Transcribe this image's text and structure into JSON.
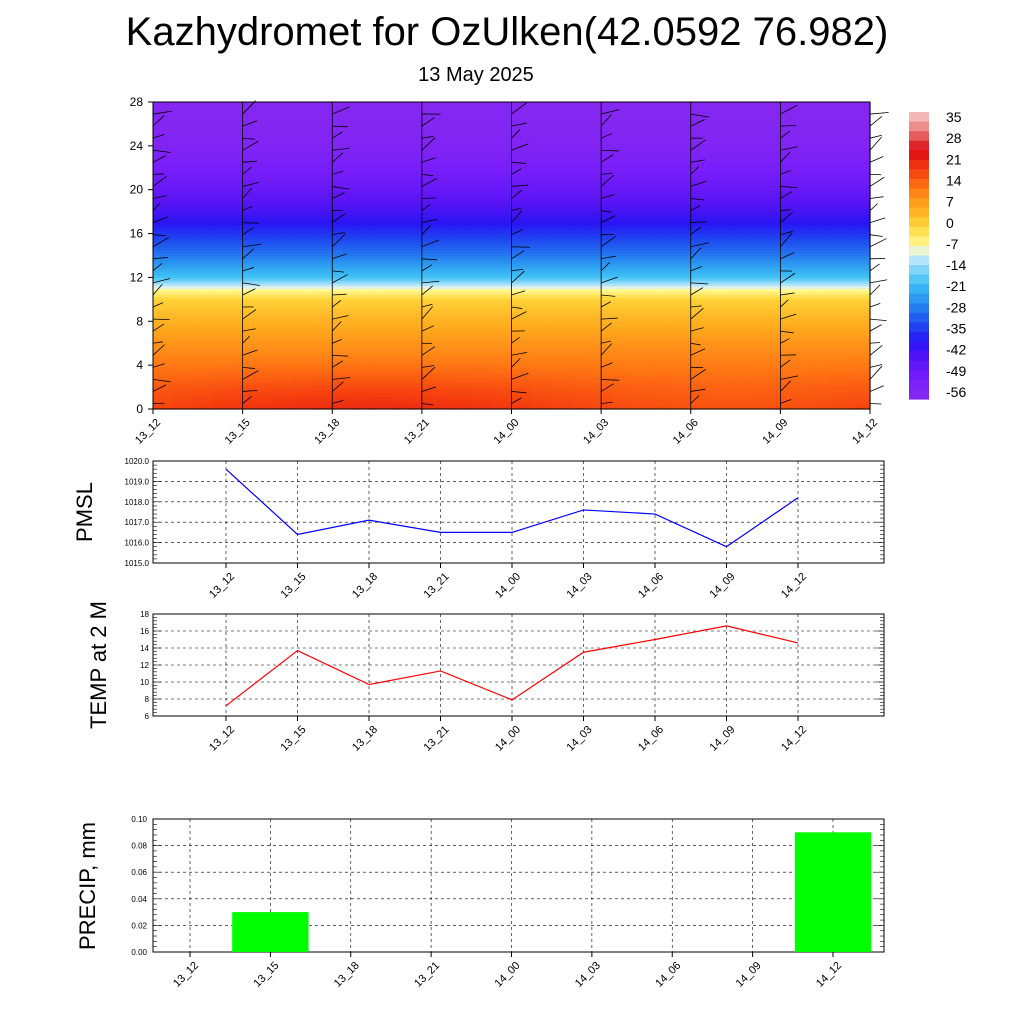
{
  "title": "Kazhydromet for OzUlken(42.0592 76.982)",
  "subtitle": "13 May 2025",
  "chart_data": [
    {
      "type": "heatmap",
      "xlabel": "",
      "ylabel": "",
      "x_ticks": [
        "13_12",
        "13_15",
        "13_18",
        "13_21",
        "14_00",
        "14_03",
        "14_06",
        "14_09",
        "14_12"
      ],
      "y_ticks": [
        0,
        4,
        8,
        12,
        16,
        20,
        24,
        28
      ],
      "ylim": [
        0,
        28
      ],
      "colorbar_labels": [
        "35",
        "28",
        "21",
        "14",
        "7",
        "0",
        "-7",
        "-14",
        "-21",
        "-28",
        "-35",
        "-42",
        "-49",
        "-56"
      ],
      "temperature_profile": {
        "levels": [
          0,
          2,
          4,
          6,
          8,
          10,
          11,
          12,
          14,
          16,
          18,
          20,
          22,
          24,
          26,
          28
        ],
        "values": [
          21,
          18,
          14,
          10,
          6,
          1,
          -8,
          -20,
          -30,
          -38,
          -46,
          -52,
          -56,
          -60,
          -62,
          -62
        ]
      },
      "wind_barbs": "shown"
    },
    {
      "type": "line",
      "ylabel": "PMSL",
      "x": [
        "13_12",
        "13_15",
        "13_18",
        "13_21",
        "14_00",
        "14_03",
        "14_06",
        "14_09",
        "14_12"
      ],
      "y_ticks": [
        "1015.0",
        "1016.0",
        "1017.0",
        "1018.0",
        "1019.0",
        "1020.0"
      ],
      "ylim": [
        1015,
        1020
      ],
      "series": [
        {
          "values": [
            1019.6,
            1016.4,
            1017.1,
            1016.5,
            1016.5,
            1017.6,
            1017.4,
            1015.8,
            1018.2
          ],
          "color": "#0000ff"
        }
      ],
      "grid": true
    },
    {
      "type": "line",
      "ylabel": "TEMP at 2 M",
      "x": [
        "13_12",
        "13_15",
        "13_18",
        "13_21",
        "14_00",
        "14_03",
        "14_06",
        "14_09",
        "14_12"
      ],
      "y_ticks": [
        "6",
        "8",
        "10",
        "12",
        "14",
        "16",
        "18"
      ],
      "ylim": [
        6,
        18
      ],
      "series": [
        {
          "values": [
            7.2,
            13.7,
            9.7,
            11.3,
            7.9,
            13.5,
            15.0,
            16.6,
            14.6
          ],
          "color": "#ff0000"
        }
      ],
      "grid": true
    },
    {
      "type": "bar",
      "ylabel": "PRECIP, mm",
      "categories": [
        "13_12",
        "13_15",
        "13_18",
        "13_21",
        "14_00",
        "14_03",
        "14_06",
        "14_09",
        "14_12"
      ],
      "y_ticks": [
        "0.00",
        "0.02",
        "0.04",
        "0.06",
        "0.08",
        "0.10"
      ],
      "ylim": [
        0,
        0.1
      ],
      "series": [
        {
          "values": [
            0,
            0.03,
            0,
            0,
            0,
            0,
            0,
            0,
            0.09
          ],
          "color": "#00ff00"
        }
      ],
      "grid": true
    }
  ]
}
